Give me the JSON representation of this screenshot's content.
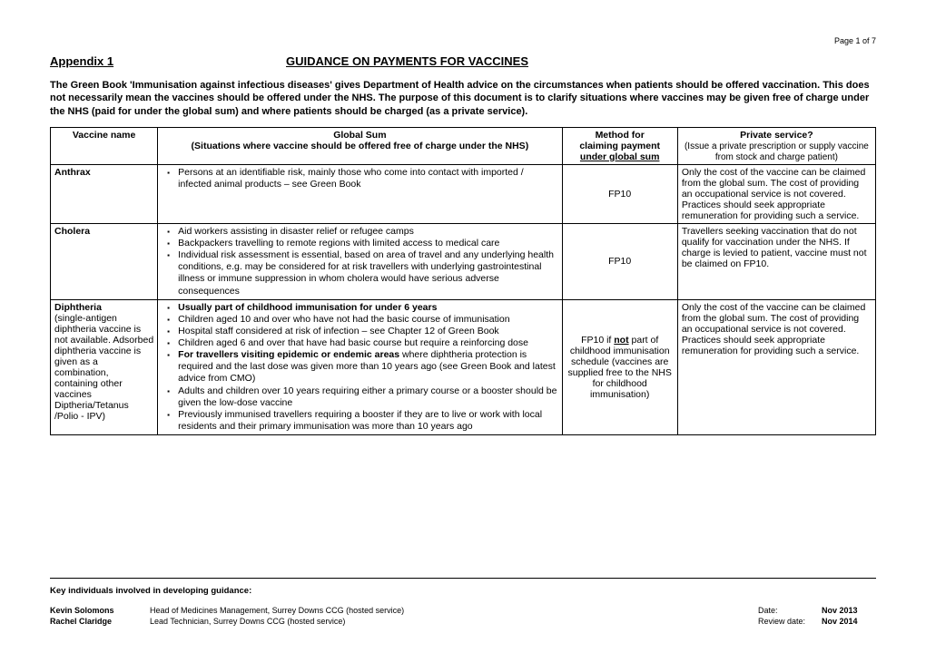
{
  "page_number": "Page 1 of 7",
  "appendix_label": "Appendix 1",
  "title": "GUIDANCE ON PAYMENTS FOR VACCINES",
  "intro": "The Green Book 'Immunisation against infectious diseases' gives Department of Health advice on the circumstances when patients should be offered vaccination.  This does not necessarily mean the vaccines should be offered under the NHS.  The purpose of this document is to clarify situations where vaccines may be given free of charge under the NHS (paid for under the global sum) and where patients should be charged (as a private service).",
  "headers": {
    "col1": "Vaccine name",
    "col2_top": "Global Sum",
    "col2_sub": "(Situations where vaccine should be offered free of charge under the NHS)",
    "col3_top": "Method for",
    "col3_mid": "claiming payment",
    "col3_bot": "under global sum",
    "col4_top": "Private service?",
    "col4_sub": "(Issue a private prescription or supply vaccine from stock and charge patient)"
  },
  "rows": [
    {
      "name_html": "<b>Anthrax</b>",
      "bullets": [
        "Persons at an identifiable risk, mainly those who come into contact with imported / infected animal products – see Green Book"
      ],
      "method": "FP10",
      "private": "Only the cost of the vaccine can be claimed from the global sum. The cost of providing an occupational service is not covered. Practices should seek appropriate remuneration for providing such a service."
    },
    {
      "name_html": "<b>Cholera</b>",
      "bullets": [
        "Aid workers assisting in disaster relief or refugee camps",
        "Backpackers travelling to remote regions with limited access to medical care",
        "Individual risk assessment is essential, based on area of travel and any underlying health conditions, e.g. may be considered for at risk travellers with underlying gastrointestinal illness or immune suppression in whom cholera would have serious adverse consequences"
      ],
      "method": "FP10",
      "private": "Travellers seeking vaccination that do not qualify for vaccination under the NHS. If charge is levied to patient, vaccine must not be claimed on FP10."
    },
    {
      "name_html": "<b>Diphtheria</b><br>(single-antigen diphtheria vaccine is not available. Adsorbed diphtheria vaccine is given as a combination, containing other vaccines Diptheria/Tetanus /Polio - IPV)",
      "bullets": [
        "<b>Usually part of childhood immunisation for under 6 years</b>",
        "Children aged 10 and over who have not had the basic course of immunisation",
        "Hospital staff considered at risk of infection – see Chapter 12 of Green Book",
        "Children aged 6 and over that have had basic course but require a reinforcing dose",
        "<b>For travellers visiting epidemic or endemic areas</b> where diphtheria protection is required and the last dose was given more than 10 years ago (see Green Book and latest advice from CMO)",
        "Adults and children over 10 years requiring either a primary course or a booster should be given the low-dose vaccine",
        "Previously immunised travellers requiring a booster if they are to live or work with local residents and their primary immunisation was more than 10 years ago"
      ],
      "method_html": "FP10 if <u><b>not</b></u> part of childhood immunisation schedule (vaccines are supplied free to the NHS for childhood immunisation)",
      "private": "Only the cost of the vaccine can be claimed from the global sum. The cost of providing an occupational service is not covered. Practices should seek appropriate remuneration for providing such a service."
    }
  ],
  "footer": {
    "title": "Key individuals involved in developing guidance:",
    "people": [
      {
        "name": "Kevin Solomons",
        "role": "Head of Medicines Management, Surrey Downs CCG (hosted service)",
        "date_label": "Date:",
        "date": "Nov 2013"
      },
      {
        "name": "Rachel Claridge",
        "role": "Lead Technician, Surrey Downs CCG (hosted service)",
        "date_label": "Review date:",
        "date": "Nov 2014"
      }
    ]
  }
}
